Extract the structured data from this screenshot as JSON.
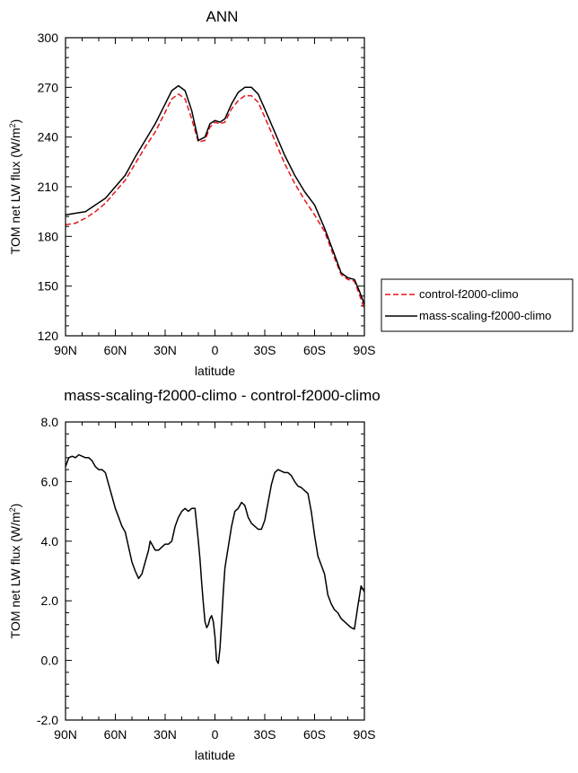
{
  "chart_data": [
    {
      "type": "line",
      "title": "ANN",
      "xlabel": "latitude",
      "ylabel_main": "TOM net LW flux (W/m",
      "ylabel_sup": "2",
      "ylabel_close": ")",
      "xlim": [
        90,
        -90
      ],
      "ylim": [
        120,
        300
      ],
      "xticks": [
        90,
        60,
        30,
        0,
        -30,
        -60,
        -90
      ],
      "xtick_labels": [
        "90N",
        "60N",
        "30N",
        "0",
        "30S",
        "60S",
        "90S"
      ],
      "yticks": [
        120,
        150,
        180,
        210,
        240,
        270,
        300
      ],
      "ytick_labels": [
        "120",
        "150",
        "180",
        "210",
        "240",
        "270",
        "300"
      ],
      "legend_position": "right",
      "series": [
        {
          "name": "control-f2000-climo",
          "color": "#e8141c",
          "dash": "dashed",
          "x": [
            90,
            84,
            78,
            72,
            66,
            60,
            54,
            48,
            42,
            36,
            30,
            26,
            22,
            18,
            14,
            10,
            6,
            3,
            0,
            -3,
            -6,
            -10,
            -14,
            -18,
            -22,
            -26,
            -30,
            -36,
            -42,
            -48,
            -54,
            -60,
            -66,
            -72,
            -76,
            -80,
            -84,
            -87,
            -90
          ],
          "y": [
            187,
            188,
            191,
            195,
            200,
            207,
            214,
            224,
            234,
            243,
            255,
            263,
            266,
            263,
            251,
            237,
            238,
            246,
            249,
            248,
            249,
            257,
            262,
            265,
            265,
            261,
            252,
            238,
            224,
            212,
            202,
            193,
            183,
            167,
            157,
            154,
            153,
            145,
            136
          ]
        },
        {
          "name": "mass-scaling-f2000-climo",
          "color": "#000000",
          "dash": "solid",
          "x": [
            90,
            84,
            78,
            72,
            66,
            60,
            54,
            48,
            42,
            36,
            30,
            26,
            22,
            18,
            14,
            10,
            6,
            3,
            0,
            -3,
            -6,
            -10,
            -14,
            -18,
            -22,
            -26,
            -30,
            -36,
            -42,
            -48,
            -54,
            -60,
            -66,
            -72,
            -76,
            -80,
            -84,
            -87,
            -90
          ],
          "y": [
            193,
            194,
            195,
            199,
            203,
            210,
            217,
            228,
            238,
            248,
            260,
            268,
            271,
            268,
            256,
            238,
            240,
            248,
            250,
            249,
            251,
            260,
            267,
            270,
            270,
            266,
            257,
            243,
            229,
            217,
            207,
            199,
            185,
            169,
            158,
            155,
            154,
            147,
            139
          ]
        }
      ]
    },
    {
      "type": "line",
      "title": "mass-scaling-f2000-climo - control-f2000-climo",
      "xlabel": "latitude",
      "ylabel_main": "TOM net LW flux (W/m",
      "ylabel_sup": "2",
      "ylabel_close": ")",
      "xlim": [
        90,
        -90
      ],
      "ylim": [
        -2,
        8
      ],
      "xticks": [
        90,
        60,
        30,
        0,
        -30,
        -60,
        -90
      ],
      "xtick_labels": [
        "90N",
        "60N",
        "30N",
        "0",
        "30S",
        "60S",
        "90S"
      ],
      "yticks": [
        -2,
        0,
        2,
        4,
        6,
        8
      ],
      "ytick_labels": [
        "-2.0",
        "0.0",
        "2.0",
        "4.0",
        "6.0",
        "8.0"
      ],
      "series": [
        {
          "color": "#000000",
          "dash": "solid",
          "x": [
            90,
            88,
            86,
            84,
            82,
            80,
            78,
            76,
            74,
            72,
            70,
            68,
            66,
            64,
            62,
            60,
            58,
            56,
            54,
            52,
            50,
            48,
            46,
            44,
            42,
            40,
            39,
            38,
            36,
            34,
            32,
            30,
            28,
            26,
            24,
            22,
            20,
            18,
            16,
            14,
            12,
            10,
            9,
            8,
            7,
            6,
            5,
            4,
            3,
            2,
            1,
            0,
            -1,
            -2,
            -3,
            -4,
            -5,
            -6,
            -8,
            -10,
            -12,
            -14,
            -16,
            -18,
            -20,
            -22,
            -24,
            -26,
            -28,
            -30,
            -32,
            -34,
            -36,
            -38,
            -40,
            -42,
            -44,
            -46,
            -48,
            -50,
            -52,
            -54,
            -56,
            -58,
            -60,
            -62,
            -64,
            -66,
            -68,
            -70,
            -72,
            -74,
            -76,
            -78,
            -80,
            -82,
            -84,
            -86,
            -88,
            -90
          ],
          "y": [
            6.5,
            6.8,
            6.85,
            6.8,
            6.9,
            6.85,
            6.8,
            6.8,
            6.7,
            6.5,
            6.4,
            6.4,
            6.3,
            5.9,
            5.5,
            5.1,
            4.8,
            4.5,
            4.3,
            3.8,
            3.3,
            3.0,
            2.75,
            2.9,
            3.3,
            3.7,
            4.0,
            3.9,
            3.7,
            3.7,
            3.8,
            3.9,
            3.9,
            4.0,
            4.5,
            4.8,
            5.0,
            5.1,
            5.0,
            5.1,
            5.1,
            4.0,
            3.4,
            2.6,
            1.9,
            1.3,
            1.1,
            1.2,
            1.4,
            1.5,
            1.3,
            0.8,
            0.0,
            -0.1,
            0.4,
            1.3,
            2.3,
            3.1,
            3.8,
            4.5,
            5.0,
            5.1,
            5.3,
            5.2,
            4.8,
            4.6,
            4.5,
            4.4,
            4.4,
            4.7,
            5.3,
            5.9,
            6.3,
            6.4,
            6.35,
            6.3,
            6.3,
            6.2,
            6.0,
            5.85,
            5.8,
            5.7,
            5.6,
            5.0,
            4.2,
            3.5,
            3.2,
            2.9,
            2.2,
            1.9,
            1.7,
            1.6,
            1.4,
            1.3,
            1.2,
            1.1,
            1.05,
            1.8,
            2.5,
            2.3
          ]
        }
      ]
    }
  ]
}
